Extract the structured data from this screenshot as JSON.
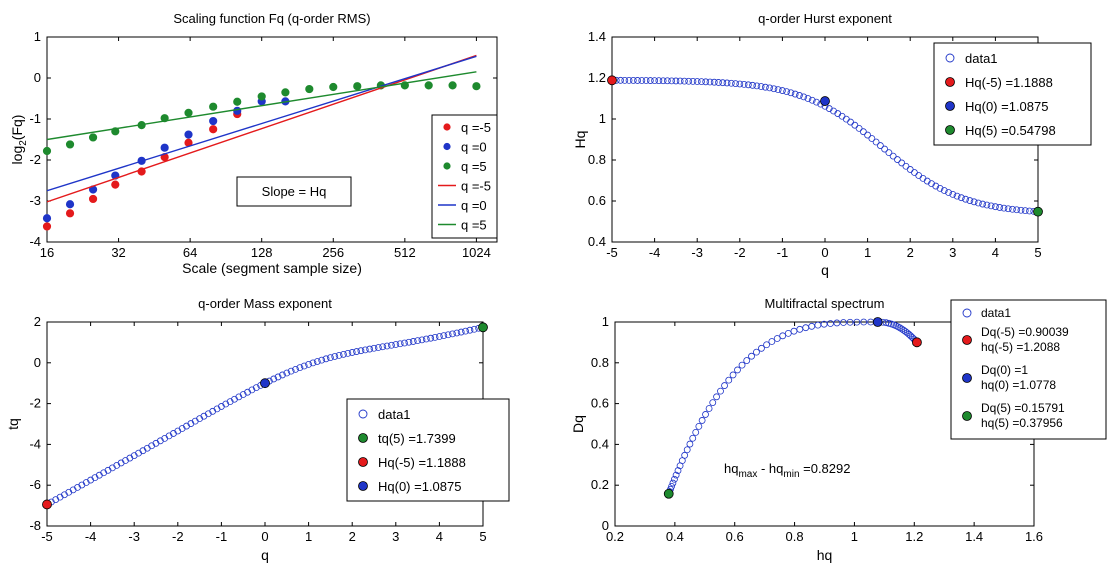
{
  "chart_data": [
    {
      "type": "scatter",
      "title": "Scaling function Fq (q-order RMS)",
      "xlabel": "Scale (segment sample size)",
      "ylabel_main": "log",
      "ylabel_sub": "2",
      "ylabel_tail": "(Fq)",
      "x_scale": "log2",
      "xlim": [
        16,
        1250
      ],
      "ylim": [
        -4,
        1
      ],
      "xticks": [
        16,
        32,
        64,
        128,
        256,
        512,
        1024
      ],
      "yticks": [
        -4,
        -3,
        -2,
        -1,
        0,
        1
      ],
      "series": [
        {
          "name": "q =-5",
          "kind": "points",
          "color": "#e41a1c",
          "x": [
            16,
            20,
            25,
            31,
            40,
            50,
            63,
            80,
            101
          ],
          "y": [
            -3.62,
            -3.3,
            -2.95,
            -2.6,
            -2.28,
            -1.93,
            -1.58,
            -1.25,
            -0.88
          ]
        },
        {
          "name": "q =0",
          "kind": "points",
          "color": "#1f35c8",
          "x": [
            16,
            20,
            25,
            31,
            40,
            50,
            63,
            80,
            101,
            128,
            161
          ],
          "y": [
            -3.42,
            -3.08,
            -2.72,
            -2.38,
            -2.02,
            -1.7,
            -1.38,
            -1.05,
            -0.8,
            -0.57,
            -0.57
          ]
        },
        {
          "name": "q =5",
          "kind": "points",
          "color": "#1e8a2e",
          "x": [
            16,
            20,
            25,
            31,
            40,
            50,
            63,
            80,
            101,
            128,
            161,
            203,
            256,
            323,
            406,
            512,
            645,
            813,
            1024
          ],
          "y": [
            -1.78,
            -1.62,
            -1.45,
            -1.3,
            -1.15,
            -0.98,
            -0.85,
            -0.7,
            -0.58,
            -0.45,
            -0.35,
            -0.27,
            -0.22,
            -0.2,
            -0.18,
            -0.18,
            -0.18,
            -0.18,
            -0.2
          ]
        },
        {
          "name": "q =-5",
          "kind": "line",
          "color": "#e41a1c",
          "x": [
            16,
            1024
          ],
          "y": [
            -3.02,
            0.55
          ]
        },
        {
          "name": "q =0",
          "kind": "line",
          "color": "#1f35c8",
          "x": [
            16,
            1024
          ],
          "y": [
            -2.75,
            0.53
          ]
        },
        {
          "name": "q =5",
          "kind": "line",
          "color": "#1e8a2e",
          "x": [
            16,
            1024
          ],
          "y": [
            -1.5,
            0.15
          ]
        }
      ],
      "annotation": "Slope = Hq"
    },
    {
      "type": "scatter",
      "title": "q-order Hurst exponent",
      "xlabel": "q",
      "ylabel": "Hq",
      "xlim": [
        -5,
        5
      ],
      "ylim": [
        0.4,
        1.4
      ],
      "xticks": [
        -5,
        -4,
        -3,
        -2,
        -1,
        0,
        1,
        2,
        3,
        4,
        5
      ],
      "yticks": [
        0.4,
        0.6,
        0.8,
        1,
        1.2,
        1.4
      ],
      "curve": {
        "q_min": -5,
        "q_max": 5,
        "h_min": 0.54798,
        "h_max": 1.1888,
        "center": 1.35,
        "width": 0.95
      },
      "series": [
        {
          "name": "data1",
          "kind": "open-circles",
          "color": "#1f35c8"
        },
        {
          "name": "Hq(-5) =1.1888",
          "kind": "marker",
          "color": "#e41a1c",
          "x": -5,
          "y": 1.1888
        },
        {
          "name": "Hq(0) =1.0875",
          "kind": "marker",
          "color": "#1f35c8",
          "x": 0,
          "y": 1.0875
        },
        {
          "name": "Hq(5) =0.54798",
          "kind": "marker",
          "color": "#1e8a2e",
          "x": 5,
          "y": 0.54798
        }
      ]
    },
    {
      "type": "scatter",
      "title": "q-order Mass exponent",
      "xlabel": "q",
      "ylabel": "tq",
      "xlim": [
        -5,
        5
      ],
      "ylim": [
        -8,
        2
      ],
      "xticks": [
        -5,
        -4,
        -3,
        -2,
        -1,
        0,
        1,
        2,
        3,
        4,
        5
      ],
      "yticks": [
        -8,
        -6,
        -4,
        -2,
        0,
        2
      ],
      "series": [
        {
          "name": "data1",
          "kind": "open-circles",
          "color": "#1f35c8"
        },
        {
          "name": "tq(5) =1.7399",
          "kind": "marker",
          "color": "#1e8a2e",
          "x": 5,
          "y": 1.7399
        },
        {
          "name": "Hq(-5) =1.1888",
          "kind": "marker",
          "color": "#e41a1c",
          "x": -5,
          "y": -6.944
        },
        {
          "name": "Hq(0) =1.0875",
          "kind": "marker",
          "color": "#1f35c8",
          "x": 0,
          "y": -1
        }
      ]
    },
    {
      "type": "scatter",
      "title": "Multifractal spectrum",
      "xlabel": "hq",
      "ylabel": "Dq",
      "xlim": [
        0.2,
        1.6
      ],
      "ylim": [
        0,
        1
      ],
      "xticks": [
        0.2,
        0.4,
        0.6,
        0.8,
        1,
        1.2,
        1.4,
        1.6
      ],
      "yticks": [
        0,
        0.2,
        0.4,
        0.6,
        0.8,
        1
      ],
      "series": [
        {
          "name": "data1",
          "kind": "open-circles",
          "color": "#1f35c8"
        },
        {
          "name": "Dq(-5) =0.90039",
          "name2": "hq(-5) =1.2088",
          "kind": "marker",
          "color": "#e41a1c",
          "x": 1.2088,
          "y": 0.90039
        },
        {
          "name": "Dq(0) =1",
          "name2": "hq(0) =1.0778",
          "kind": "marker",
          "color": "#1f35c8",
          "x": 1.0778,
          "y": 1
        },
        {
          "name": "Dq(5) =0.15791",
          "name2": "hq(5) =0.37956",
          "kind": "marker",
          "color": "#1e8a2e",
          "x": 0.37956,
          "y": 0.15791
        }
      ],
      "annotation": {
        "text": "hq",
        "sub1": "max",
        "mid": " - hq",
        "sub2": "min",
        "tail": " =0.8292"
      }
    }
  ]
}
